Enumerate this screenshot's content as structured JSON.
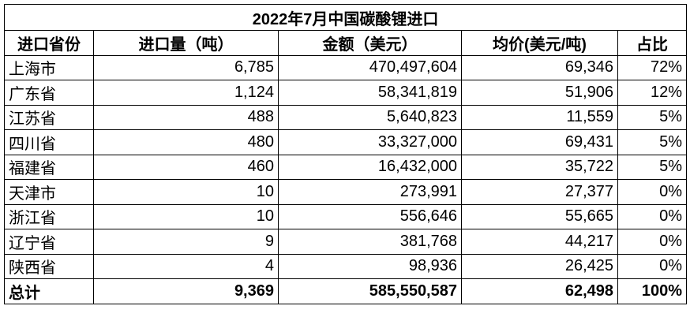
{
  "table": {
    "title": "2022年7月中国碳酸锂进口",
    "header": [
      "进口省份",
      "进口量（吨）",
      "金额（美元）",
      "均价(美元/吨)",
      "占比"
    ],
    "rows": [
      [
        "上海市",
        "6,785",
        "470,497,604",
        "69,346",
        "72%"
      ],
      [
        "广东省",
        "1,124",
        "58,341,819",
        "51,906",
        "12%"
      ],
      [
        "江苏省",
        "488",
        "5,640,823",
        "11,559",
        "5%"
      ],
      [
        "四川省",
        "480",
        "33,327,000",
        "69,431",
        "5%"
      ],
      [
        "福建省",
        "460",
        "16,432,000",
        "35,722",
        "5%"
      ],
      [
        "天津市",
        "10",
        "273,991",
        "27,377",
        "0%"
      ],
      [
        "浙江省",
        "10",
        "556,646",
        "55,665",
        "0%"
      ],
      [
        "辽宁省",
        "9",
        "381,768",
        "44,217",
        "0%"
      ],
      [
        "陕西省",
        "4",
        "98,936",
        "26,425",
        "0%"
      ]
    ],
    "total": [
      "总计",
      "9,369",
      "585,550,587",
      "62,498",
      "100%"
    ]
  }
}
